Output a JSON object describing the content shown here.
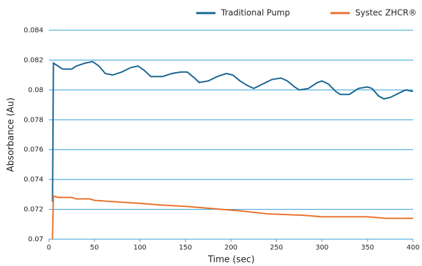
{
  "chart_data": {
    "type": "line",
    "x_label": "Time (sec)",
    "y_label": "Absorbance (Au)",
    "xlim": [
      0,
      400
    ],
    "xticks": [
      0,
      50,
      100,
      150,
      200,
      250,
      300,
      350,
      400
    ],
    "ylim": [
      0.07,
      0.084
    ],
    "yticks": [
      0.07,
      0.072,
      0.074,
      0.076,
      0.078,
      0.08,
      0.082,
      0.084
    ],
    "grid": true,
    "grid_color": "#2b9cd6",
    "series": [
      {
        "name": "Traditional Pump",
        "color": "#17638f",
        "x": [
          4,
          5,
          10,
          15,
          25,
          30,
          40,
          48,
          55,
          62,
          70,
          80,
          90,
          98,
          105,
          112,
          125,
          135,
          145,
          152,
          160,
          165,
          175,
          185,
          195,
          202,
          210,
          218,
          225,
          235,
          245,
          255,
          262,
          270,
          275,
          285,
          295,
          300,
          307,
          315,
          320,
          330,
          340,
          350,
          355,
          362,
          368,
          375,
          385,
          392,
          400
        ],
        "values": [
          0.0725,
          0.0818,
          0.0816,
          0.0814,
          0.0814,
          0.0816,
          0.0818,
          0.0819,
          0.0816,
          0.0811,
          0.081,
          0.0812,
          0.0815,
          0.0816,
          0.0813,
          0.0809,
          0.0809,
          0.0811,
          0.0812,
          0.0812,
          0.0808,
          0.0805,
          0.0806,
          0.0809,
          0.0811,
          0.081,
          0.0806,
          0.0803,
          0.0801,
          0.0804,
          0.0807,
          0.0808,
          0.0806,
          0.0802,
          0.08,
          0.0801,
          0.0805,
          0.0806,
          0.0804,
          0.0799,
          0.0797,
          0.0797,
          0.0801,
          0.0802,
          0.0801,
          0.0796,
          0.0794,
          0.0795,
          0.0798,
          0.08,
          0.0799
        ]
      },
      {
        "name": "Systec ZHCR®",
        "color": "#e8702a",
        "x": [
          4,
          5,
          10,
          25,
          30,
          45,
          50,
          75,
          100,
          120,
          150,
          170,
          190,
          210,
          240,
          280,
          300,
          350,
          370,
          400
        ],
        "values": [
          0.07,
          0.0729,
          0.0728,
          0.0728,
          0.0727,
          0.0727,
          0.0726,
          0.0725,
          0.0724,
          0.0723,
          0.0722,
          0.0721,
          0.072,
          0.0719,
          0.0717,
          0.0716,
          0.0715,
          0.0715,
          0.0714,
          0.0714
        ]
      }
    ]
  }
}
